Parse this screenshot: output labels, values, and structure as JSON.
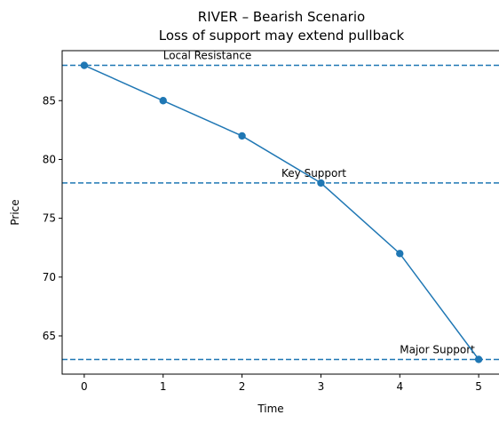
{
  "chart_data": {
    "type": "line",
    "title": "RIVER – Bearish Scenario",
    "subtitle": "Loss of support may extend pullback",
    "xlabel": "Time",
    "ylabel": "Price",
    "x": [
      0,
      1,
      2,
      3,
      4,
      5
    ],
    "series": [
      {
        "values": [
          88,
          85,
          82,
          78,
          72,
          63
        ],
        "color": "#1f77b4",
        "marker": "circle"
      }
    ],
    "xlim": [
      -0.28,
      5.28
    ],
    "ylim": [
      61.75,
      89.25
    ],
    "xticks": [
      0,
      1,
      2,
      3,
      4,
      5
    ],
    "yticks": [
      65,
      70,
      75,
      80,
      85
    ],
    "grid": false,
    "legend": "none",
    "reference_lines": [
      {
        "y": 88,
        "label": "Local Resistance",
        "label_x": 1,
        "style": "dashed",
        "color": "#1f77b4"
      },
      {
        "y": 78,
        "label": "Key Support",
        "label_x": 2.5,
        "style": "dashed",
        "color": "#1f77b4"
      },
      {
        "y": 63,
        "label": "Major Support",
        "label_x": 4,
        "style": "dashed",
        "color": "#1f77b4"
      }
    ]
  }
}
